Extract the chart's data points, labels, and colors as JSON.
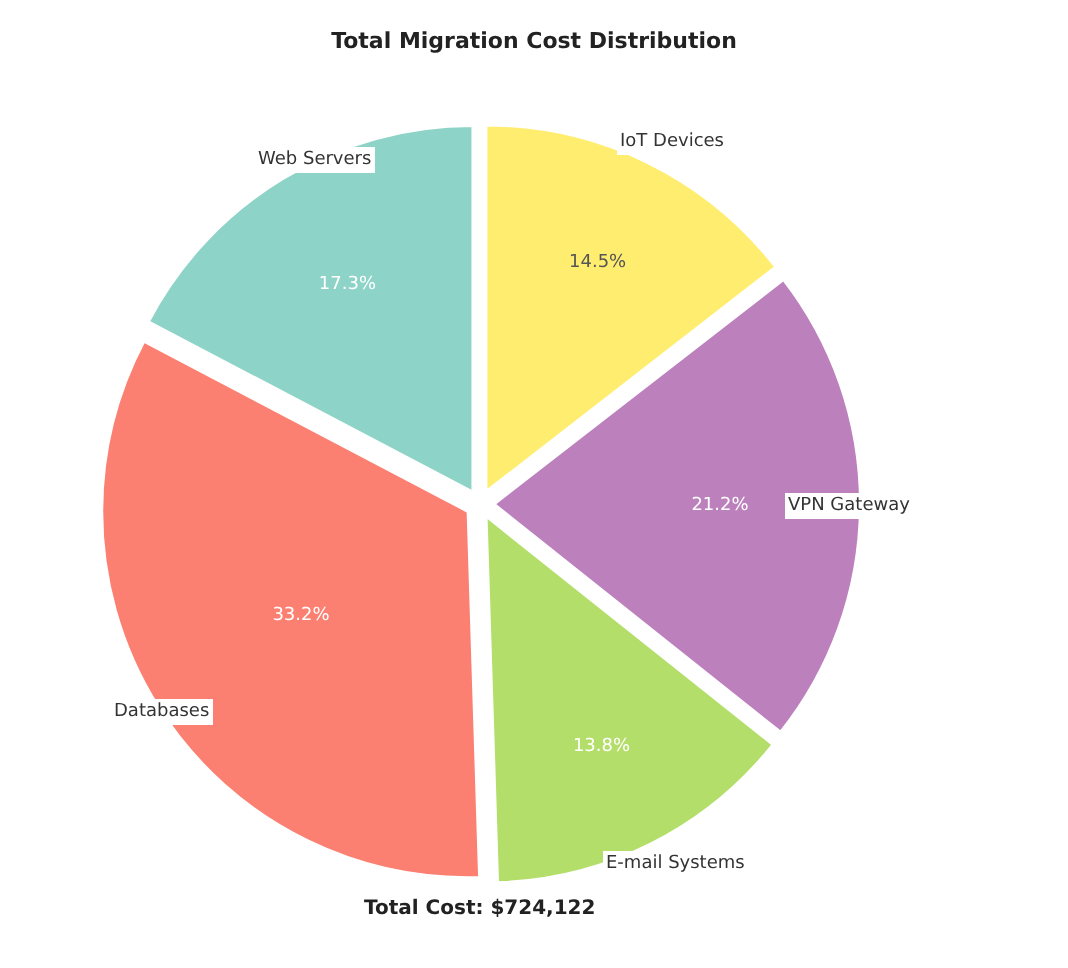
{
  "chart_data": {
    "type": "pie",
    "title": "Total Migration Cost Distribution",
    "categories": [
      "Web Servers",
      "Databases",
      "E-mail Systems",
      "VPN Gateway",
      "IoT Devices"
    ],
    "values": [
      17.3,
      33.2,
      13.8,
      21.2,
      14.5
    ],
    "value_labels": [
      "17.3%",
      "33.2%",
      "13.8%",
      "21.2%",
      "14.5%"
    ],
    "colors": [
      "#8dd3c7",
      "#fb8072",
      "#b3de69",
      "#bc80bd",
      "#ffed6f"
    ],
    "annotations": [
      "Total Cost: $724,122"
    ]
  }
}
